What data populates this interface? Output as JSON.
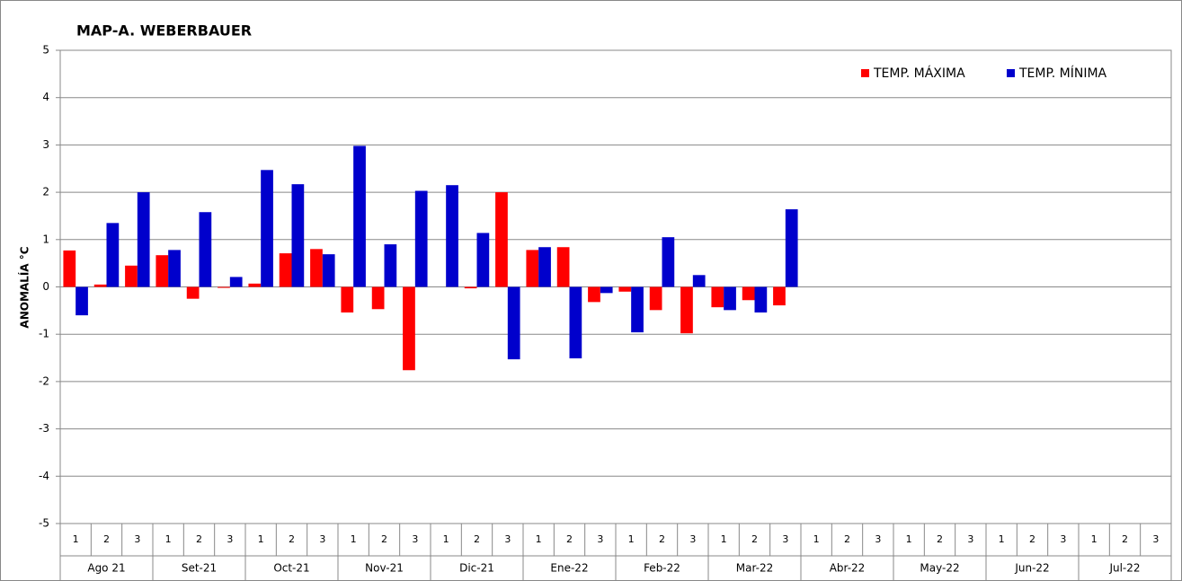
{
  "chart_data": {
    "type": "bar",
    "title": "MAP-A. WEBERBAUER",
    "y_label": "ANOMALÍA °C",
    "categories": [
      "1",
      "2",
      "3",
      "1",
      "2",
      "3",
      "1",
      "2",
      "3",
      "1",
      "2",
      "3",
      "1",
      "2",
      "3",
      "1",
      "2",
      "3",
      "1",
      "2",
      "3",
      "1",
      "2",
      "3",
      "1",
      "2",
      "3",
      "1",
      "2",
      "3",
      "1",
      "2",
      "3",
      "1",
      "2",
      "3"
    ],
    "groups": [
      "Ago 21",
      "Set-21",
      "Oct-21",
      "Nov-21",
      "Dic-21",
      "Ene-22",
      "Feb-22",
      "Mar-22",
      "Abr-22",
      "May-22",
      "Jun-22",
      "Jul-22"
    ],
    "series": [
      {
        "name": "TEMP. MÁXIMA",
        "color": "#ff0000",
        "values": [
          0.77,
          0.05,
          0.45,
          0.67,
          -0.25,
          -0.02,
          0.07,
          0.71,
          0.8,
          -0.54,
          -0.47,
          -1.76,
          0,
          -0.03,
          2.0,
          0.78,
          0.84,
          -0.32,
          -0.1,
          -0.49,
          -0.98,
          -0.43,
          -0.28,
          -0.39,
          null,
          null,
          null,
          null,
          null,
          null,
          null,
          null,
          null,
          null,
          null,
          null
        ]
      },
      {
        "name": "TEMP. MÍNIMA",
        "color": "#0000cc",
        "values": [
          -0.6,
          1.35,
          2.0,
          0.78,
          1.58,
          0.21,
          2.47,
          2.17,
          0.69,
          2.98,
          0.9,
          2.03,
          2.15,
          1.14,
          -1.53,
          0.84,
          -1.51,
          -0.13,
          -0.96,
          1.05,
          0.25,
          -0.49,
          -0.54,
          1.64,
          null,
          null,
          null,
          null,
          null,
          null,
          null,
          null,
          null,
          null,
          null,
          null
        ]
      }
    ],
    "ylim": [
      -5,
      5
    ],
    "yticks": [
      -5,
      -4,
      -3,
      -2,
      -1,
      0,
      1,
      2,
      3,
      4,
      5
    ],
    "grid": true,
    "legend": "top-right"
  }
}
